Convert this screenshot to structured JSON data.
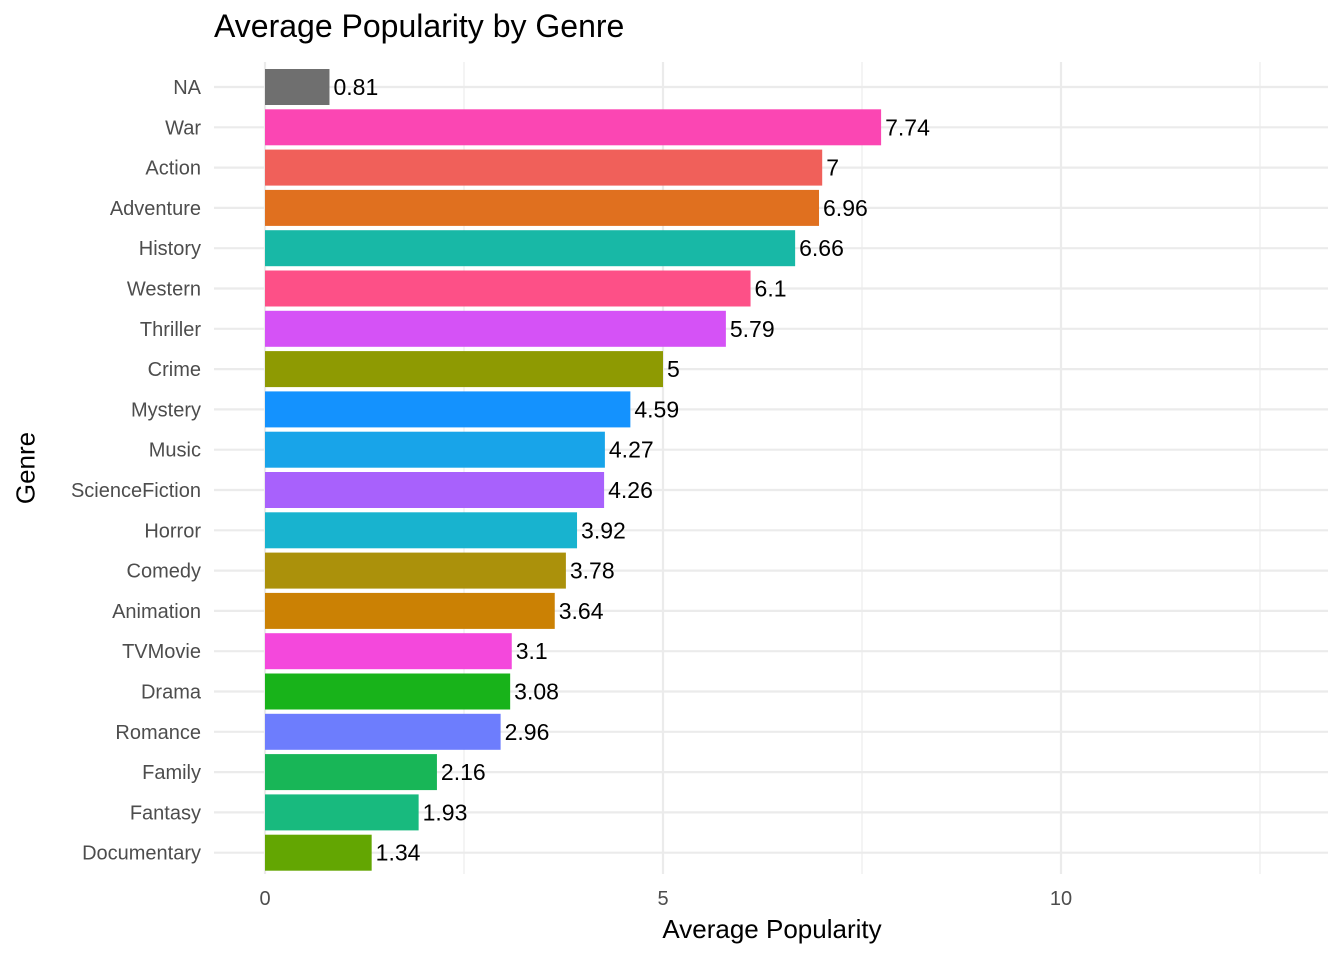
{
  "chart_data": {
    "type": "bar",
    "orientation": "horizontal",
    "title": "Average Popularity by Genre",
    "xlabel": "Average Popularity",
    "ylabel": "Genre",
    "xlim": [
      0,
      13.3
    ],
    "x_ticks": [
      0,
      5,
      10
    ],
    "grid": true,
    "legend": "none",
    "categories": [
      "NA",
      "War",
      "Action",
      "Adventure",
      "History",
      "Western",
      "Thriller",
      "Crime",
      "Mystery",
      "Music",
      "ScienceFiction",
      "Horror",
      "Comedy",
      "Animation",
      "TVMovie",
      "Drama",
      "Romance",
      "Family",
      "Fantasy",
      "Documentary"
    ],
    "values": [
      0.81,
      7.74,
      7,
      6.96,
      6.66,
      6.1,
      5.79,
      5,
      4.59,
      4.27,
      4.26,
      3.92,
      3.78,
      3.64,
      3.1,
      3.08,
      2.96,
      2.16,
      1.93,
      1.34
    ],
    "value_labels": [
      "0.81",
      "7.74",
      "7",
      "6.96",
      "6.66",
      "6.1",
      "5.79",
      "5",
      "4.59",
      "4.27",
      "4.26",
      "3.92",
      "3.78",
      "3.64",
      "3.1",
      "3.08",
      "2.96",
      "2.16",
      "1.93",
      "1.34"
    ],
    "colors": [
      "#6f6f6f",
      "#fb46b3",
      "#f0605a",
      "#e0701f",
      "#18b8a6",
      "#fd5087",
      "#d552f6",
      "#8e9a02",
      "#1492fe",
      "#18a4e9",
      "#a861fc",
      "#18b3cf",
      "#ab910b",
      "#cb8104",
      "#f448dc",
      "#18b31a",
      "#6d7dfd",
      "#18b657",
      "#18ba7e",
      "#63a602"
    ]
  }
}
